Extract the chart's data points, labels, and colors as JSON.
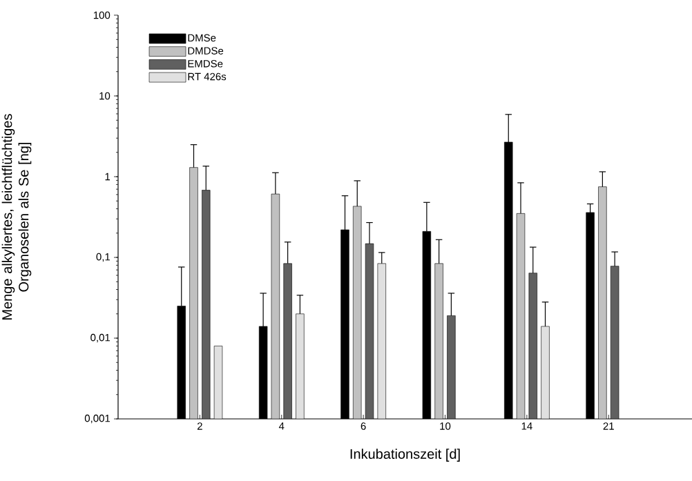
{
  "chart_data": {
    "type": "bar",
    "xlabel": "Inkubationszeit [d]",
    "ylabel": "Menge alkyliertes, leichtflüchtiges Organoselen als Se [ng]",
    "categories": [
      "2",
      "4",
      "6",
      "10",
      "14",
      "21"
    ],
    "series": [
      {
        "name": "DMSe",
        "color": "#000000",
        "values": [
          0.025,
          0.014,
          0.22,
          0.21,
          2.68,
          0.36
        ],
        "errors": [
          [
            0.025,
            0.076
          ],
          [
            0.014,
            0.036
          ],
          [
            0.22,
            0.58
          ],
          [
            0.21,
            0.48
          ],
          [
            2.68,
            5.9
          ],
          [
            0.36,
            0.46
          ]
        ]
      },
      {
        "name": "DMDSe",
        "color": "#c0c0c0",
        "values": [
          1.3,
          0.61,
          0.43,
          0.084,
          0.35,
          0.75
        ],
        "errors": [
          [
            1.3,
            2.49
          ],
          [
            0.61,
            1.12
          ],
          [
            0.43,
            0.89
          ],
          [
            0.084,
            0.166
          ],
          [
            0.35,
            0.84
          ],
          [
            0.75,
            1.15
          ]
        ]
      },
      {
        "name": "EMDSe",
        "color": "#606060",
        "values": [
          0.68,
          0.084,
          0.148,
          0.019,
          0.064,
          0.078
        ],
        "errors": [
          [
            0.68,
            1.35
          ],
          [
            0.084,
            0.155
          ],
          [
            0.148,
            0.27
          ],
          [
            0.019,
            0.036
          ],
          [
            0.064,
            0.134
          ],
          [
            0.078,
            0.117
          ]
        ]
      },
      {
        "name": "RT 426s",
        "color": "#e0e0e0",
        "values": [
          0.008,
          0.02,
          0.084,
          null,
          0.014,
          null
        ],
        "errors": [
          null,
          [
            0.02,
            0.034
          ],
          [
            0.084,
            0.115
          ],
          null,
          [
            0.014,
            0.028
          ],
          null
        ]
      }
    ],
    "log": "y",
    "ylim": [
      0.001,
      100
    ],
    "yticks": [
      {
        "value": 0.001,
        "label": "0,001"
      },
      {
        "value": 0.01,
        "label": "0,01"
      },
      {
        "value": 0.1,
        "label": "0,1"
      },
      1,
      10,
      100
    ],
    "grid": false,
    "legend": "top left"
  }
}
